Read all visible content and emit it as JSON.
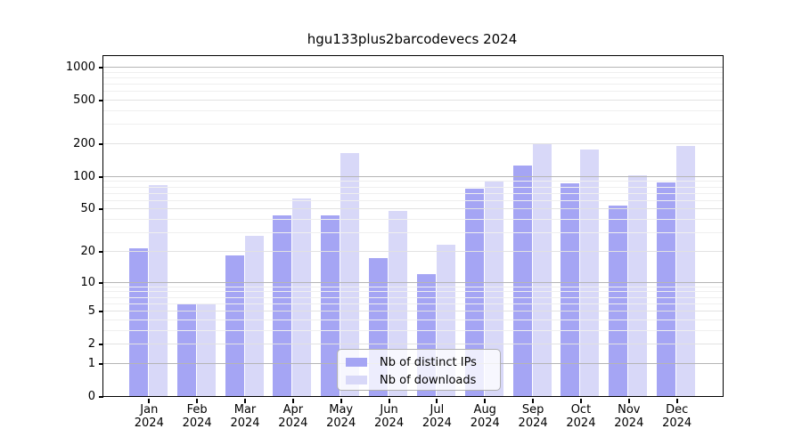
{
  "chart_data": {
    "type": "bar",
    "title": "hgu133plus2barcodevecs 2024",
    "categories": [
      "Jan 2024",
      "Feb 2024",
      "Mar 2024",
      "Apr 2024",
      "May 2024",
      "Jun 2024",
      "Jul 2024",
      "Aug 2024",
      "Sep 2024",
      "Oct 2024",
      "Nov 2024",
      "Dec 2024"
    ],
    "x_tick_labels": [
      {
        "month": "Jan",
        "year": "2024"
      },
      {
        "month": "Feb",
        "year": "2024"
      },
      {
        "month": "Mar",
        "year": "2024"
      },
      {
        "month": "Apr",
        "year": "2024"
      },
      {
        "month": "May",
        "year": "2024"
      },
      {
        "month": "Jun",
        "year": "2024"
      },
      {
        "month": "Jul",
        "year": "2024"
      },
      {
        "month": "Aug",
        "year": "2024"
      },
      {
        "month": "Sep",
        "year": "2024"
      },
      {
        "month": "Oct",
        "year": "2024"
      },
      {
        "month": "Nov",
        "year": "2024"
      },
      {
        "month": "Dec",
        "year": "2024"
      }
    ],
    "series": [
      {
        "name": "Nb of distinct IPs",
        "color": "#a5a5f4",
        "values": [
          21,
          6,
          18,
          43,
          43,
          17,
          12,
          77,
          125,
          85,
          53,
          88
        ]
      },
      {
        "name": "Nb of downloads",
        "color": "#d8d8f8",
        "values": [
          83,
          6,
          28,
          62,
          163,
          48,
          23,
          90,
          197,
          177,
          102,
          190
        ]
      }
    ],
    "y_ticks": [
      0,
      1,
      2,
      5,
      10,
      20,
      50,
      100,
      200,
      500,
      1000
    ],
    "y_scale": "log10(1+value)",
    "ylim": [
      0,
      1300
    ],
    "xlabel": "",
    "ylabel": "",
    "grid": true,
    "legend_position": "inside-bottom-center"
  },
  "legend": {
    "items": [
      {
        "label": "Nb of distinct IPs",
        "color": "#a5a5f4"
      },
      {
        "label": "Nb of downloads",
        "color": "#d8d8f8"
      }
    ]
  },
  "styles": {
    "background": "#ffffff",
    "axis_color": "#000000",
    "text_color": "#000000",
    "grid_major_color": "#b5b5b5",
    "grid_labeled_color": "#e2e2e2",
    "grid_minor_color": "#efefef",
    "legend_border_color": "#b0b0b0",
    "legend_background": "rgba(255,255,255,0.8)"
  }
}
